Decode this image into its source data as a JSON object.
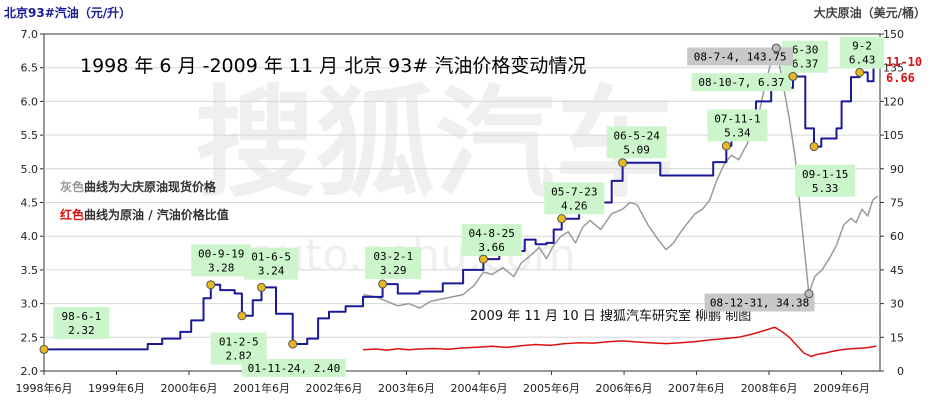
{
  "chart_data": {
    "type": "line",
    "title": "1998 年 6 月 -2009 年 11 月 北京 93# 汽油价格变动情况",
    "left_axis_label": "北京93#汽油（元/升）",
    "right_axis_label": "大庆原油（美元/桶）",
    "subtitle": "2009 年 11 月 10 日 搜狐汽车研究室 柳鹏 制图",
    "legend": {
      "gray_prefix": "灰色",
      "gray_text": "曲线为大庆原油现货价格",
      "red_prefix": "红色",
      "red_text": "曲线为原油 / 汽油价格比值"
    },
    "watermark": "搜狐汽车",
    "watermark_sub": "auto.sohu.com",
    "x_ticks": [
      "1998年6月",
      "1999年6月",
      "2000年6月",
      "2001年6月",
      "2002年6月",
      "2003年6月",
      "2004年6月",
      "2005年6月",
      "2006年6月",
      "2007年6月",
      "2008年6月",
      "2009年6月"
    ],
    "y_left": {
      "min": 2.0,
      "max": 7.0,
      "ticks": [
        "2.0",
        "2.5",
        "3.0",
        "3.5",
        "4.0",
        "4.5",
        "5.0",
        "5.5",
        "6.0",
        "6.5",
        "7.0"
      ]
    },
    "y_right": {
      "min": 0,
      "max": 150,
      "ticks": [
        "0",
        "15",
        "30",
        "45",
        "60",
        "75",
        "90",
        "105",
        "120",
        "135",
        "150"
      ]
    },
    "x_range": [
      1998.42,
      2009.95
    ],
    "series": [
      {
        "key": "gasoline",
        "axis": "left",
        "step": true,
        "color": "#1a1a99",
        "points": [
          [
            1998.42,
            2.32
          ],
          [
            1999.85,
            2.4
          ],
          [
            2000.05,
            2.48
          ],
          [
            2000.3,
            2.58
          ],
          [
            2000.45,
            2.75
          ],
          [
            2000.62,
            3.08
          ],
          [
            2000.72,
            3.28
          ],
          [
            2000.85,
            3.2
          ],
          [
            2001.05,
            3.15
          ],
          [
            2001.15,
            2.82
          ],
          [
            2001.3,
            3.05
          ],
          [
            2001.42,
            3.24
          ],
          [
            2001.62,
            2.85
          ],
          [
            2001.85,
            2.4
          ],
          [
            2002.05,
            2.48
          ],
          [
            2002.2,
            2.78
          ],
          [
            2002.35,
            2.88
          ],
          [
            2002.58,
            2.96
          ],
          [
            2002.82,
            3.1
          ],
          [
            2003.09,
            3.29
          ],
          [
            2003.3,
            3.15
          ],
          [
            2003.6,
            3.18
          ],
          [
            2003.92,
            3.3
          ],
          [
            2004.2,
            3.5
          ],
          [
            2004.48,
            3.66
          ],
          [
            2004.7,
            3.78
          ],
          [
            2005.05,
            3.95
          ],
          [
            2005.2,
            3.88
          ],
          [
            2005.35,
            3.9
          ],
          [
            2005.45,
            4.1
          ],
          [
            2005.56,
            4.26
          ],
          [
            2005.8,
            4.5
          ],
          [
            2005.95,
            4.5
          ],
          [
            2006.25,
            4.82
          ],
          [
            2006.4,
            5.09
          ],
          [
            2006.7,
            5.09
          ],
          [
            2006.92,
            4.9
          ],
          [
            2007.65,
            5.1
          ],
          [
            2007.83,
            5.34
          ],
          [
            2007.9,
            5.55
          ],
          [
            2008.1,
            5.55
          ],
          [
            2008.24,
            6.0
          ],
          [
            2008.45,
            6.2
          ],
          [
            2008.75,
            6.37
          ],
          [
            2008.92,
            5.6
          ],
          [
            2009.04,
            5.33
          ],
          [
            2009.14,
            5.45
          ],
          [
            2009.35,
            5.6
          ],
          [
            2009.42,
            6.0
          ],
          [
            2009.55,
            6.36
          ],
          [
            2009.67,
            6.43
          ],
          [
            2009.78,
            6.3
          ],
          [
            2009.86,
            6.66
          ]
        ]
      },
      {
        "key": "crude",
        "axis": "right",
        "step": false,
        "color": "#9a9a9a",
        "points": [
          [
            2002.82,
            34
          ],
          [
            2003.0,
            33
          ],
          [
            2003.15,
            31
          ],
          [
            2003.3,
            29
          ],
          [
            2003.45,
            30
          ],
          [
            2003.6,
            28
          ],
          [
            2003.75,
            31
          ],
          [
            2003.9,
            32
          ],
          [
            2004.05,
            33
          ],
          [
            2004.2,
            34
          ],
          [
            2004.35,
            38
          ],
          [
            2004.48,
            44
          ],
          [
            2004.6,
            43
          ],
          [
            2004.75,
            46
          ],
          [
            2004.9,
            42
          ],
          [
            2005.0,
            48
          ],
          [
            2005.15,
            52
          ],
          [
            2005.25,
            55
          ],
          [
            2005.35,
            50
          ],
          [
            2005.45,
            56
          ],
          [
            2005.55,
            60
          ],
          [
            2005.65,
            62
          ],
          [
            2005.75,
            57
          ],
          [
            2005.85,
            64
          ],
          [
            2005.95,
            67
          ],
          [
            2006.1,
            63
          ],
          [
            2006.25,
            70
          ],
          [
            2006.4,
            72
          ],
          [
            2006.5,
            75
          ],
          [
            2006.6,
            74
          ],
          [
            2006.75,
            65
          ],
          [
            2006.9,
            58
          ],
          [
            2007.0,
            54
          ],
          [
            2007.1,
            57
          ],
          [
            2007.25,
            64
          ],
          [
            2007.4,
            70
          ],
          [
            2007.5,
            72
          ],
          [
            2007.6,
            76
          ],
          [
            2007.7,
            85
          ],
          [
            2007.8,
            92
          ],
          [
            2007.9,
            96
          ],
          [
            2008.0,
            94
          ],
          [
            2008.1,
            100
          ],
          [
            2008.25,
            110
          ],
          [
            2008.35,
            125
          ],
          [
            2008.45,
            138
          ],
          [
            2008.52,
            143.75
          ],
          [
            2008.6,
            130
          ],
          [
            2008.7,
            112
          ],
          [
            2008.78,
            95
          ],
          [
            2008.85,
            72
          ],
          [
            2008.92,
            50
          ],
          [
            2008.97,
            34.38
          ],
          [
            2009.05,
            42
          ],
          [
            2009.15,
            45
          ],
          [
            2009.25,
            50
          ],
          [
            2009.35,
            56
          ],
          [
            2009.45,
            65
          ],
          [
            2009.55,
            68
          ],
          [
            2009.62,
            66
          ],
          [
            2009.7,
            72
          ],
          [
            2009.78,
            69
          ],
          [
            2009.85,
            76
          ],
          [
            2009.92,
            78
          ]
        ]
      },
      {
        "key": "ratio",
        "axis": "right",
        "step": false,
        "color": "#dd1111",
        "points": [
          [
            2002.82,
            9.5
          ],
          [
            2003.0,
            9.8
          ],
          [
            2003.15,
            9.3
          ],
          [
            2003.3,
            9.9
          ],
          [
            2003.45,
            9.5
          ],
          [
            2003.6,
            9.8
          ],
          [
            2003.8,
            10.0
          ],
          [
            2004.0,
            9.7
          ],
          [
            2004.2,
            10.3
          ],
          [
            2004.4,
            10.6
          ],
          [
            2004.6,
            11.0
          ],
          [
            2004.8,
            10.5
          ],
          [
            2005.0,
            11.2
          ],
          [
            2005.2,
            11.8
          ],
          [
            2005.4,
            11.4
          ],
          [
            2005.6,
            12.2
          ],
          [
            2005.8,
            12.6
          ],
          [
            2006.0,
            12.4
          ],
          [
            2006.2,
            13.0
          ],
          [
            2006.4,
            13.4
          ],
          [
            2006.6,
            12.9
          ],
          [
            2006.8,
            12.5
          ],
          [
            2007.0,
            12.2
          ],
          [
            2007.2,
            12.6
          ],
          [
            2007.4,
            13.1
          ],
          [
            2007.6,
            13.8
          ],
          [
            2007.8,
            14.4
          ],
          [
            2008.0,
            15.0
          ],
          [
            2008.2,
            16.5
          ],
          [
            2008.35,
            18.0
          ],
          [
            2008.5,
            19.5
          ],
          [
            2008.6,
            17.5
          ],
          [
            2008.7,
            15.0
          ],
          [
            2008.8,
            11.5
          ],
          [
            2008.9,
            8.0
          ],
          [
            2009.0,
            6.5
          ],
          [
            2009.1,
            7.5
          ],
          [
            2009.2,
            8.0
          ],
          [
            2009.3,
            8.8
          ],
          [
            2009.45,
            9.6
          ],
          [
            2009.6,
            10.0
          ],
          [
            2009.75,
            10.3
          ],
          [
            2009.9,
            11.0
          ]
        ]
      }
    ],
    "callouts": [
      {
        "key": "c1",
        "text1": "98-6-1",
        "text2": "2.32",
        "x": 1998.42,
        "axis": "left",
        "y": 2.32,
        "lx": 1998.55,
        "ly": 2.95,
        "w": 56,
        "bg": "#ccf5cc"
      },
      {
        "key": "c2",
        "text1": "00-9-19",
        "text2": "3.28",
        "x": 2000.72,
        "axis": "left",
        "y": 3.28,
        "lx": 2000.45,
        "ly": 3.88,
        "w": 60,
        "bg": "#ccf5cc"
      },
      {
        "key": "c3",
        "text1": "01-6-5",
        "text2": "3.24",
        "x": 2001.42,
        "axis": "left",
        "y": 3.24,
        "lx": 2001.18,
        "ly": 3.83,
        "w": 54,
        "bg": "#ccf5cc"
      },
      {
        "key": "c4",
        "text1": "01-2-5",
        "text2": "2.82",
        "x": 2001.15,
        "axis": "left",
        "y": 2.82,
        "lx": 2000.72,
        "ly": 2.57,
        "w": 56,
        "bg": "#ccf5cc"
      },
      {
        "key": "c5",
        "text1": "01-11-24, 2.40",
        "text2": "",
        "x": 2001.85,
        "axis": "left",
        "y": 2.4,
        "lx": 2001.15,
        "ly": 2.18,
        "w": 104,
        "bg": "#ccf5cc"
      },
      {
        "key": "c6",
        "text1": "03-2-1",
        "text2": "3.29",
        "x": 2003.09,
        "axis": "left",
        "y": 3.29,
        "lx": 2002.85,
        "ly": 3.84,
        "w": 56,
        "bg": "#ccf5cc"
      },
      {
        "key": "c7",
        "text1": "04-8-25",
        "text2": "3.66",
        "x": 2004.48,
        "axis": "left",
        "y": 3.66,
        "lx": 2004.18,
        "ly": 4.18,
        "w": 60,
        "bg": "#ccf5cc"
      },
      {
        "key": "c8",
        "text1": "05-7-23",
        "text2": "4.26",
        "x": 2005.56,
        "axis": "left",
        "y": 4.26,
        "lx": 2005.32,
        "ly": 4.8,
        "w": 60,
        "bg": "#ccf5cc"
      },
      {
        "key": "c9",
        "text1": "06-5-24",
        "text2": "5.09",
        "x": 2006.4,
        "axis": "left",
        "y": 5.09,
        "lx": 2006.18,
        "ly": 5.63,
        "w": 60,
        "bg": "#ccf5cc"
      },
      {
        "key": "c10",
        "text1": "07-11-1",
        "text2": "5.34",
        "x": 2007.83,
        "axis": "left",
        "y": 5.34,
        "lx": 2007.57,
        "ly": 5.88,
        "w": 60,
        "bg": "#ccf5cc"
      },
      {
        "key": "c11",
        "text1": "08-10-7, 6.37",
        "text2": "",
        "x": 2008.75,
        "axis": "left",
        "y": 6.37,
        "lx": 2007.35,
        "ly": 6.42,
        "w": 100,
        "bg": "#ccf5cc"
      },
      {
        "key": "c12",
        "text1": "6-30",
        "text2": "6.37",
        "x": 2008.75,
        "axis": "left",
        "y": 6.37,
        "lx": 2008.6,
        "ly": 6.9,
        "w": 46,
        "bg": "#ccf5cc"
      },
      {
        "key": "c13",
        "text1": "09-1-15",
        "text2": "5.33",
        "x": 2009.04,
        "axis": "left",
        "y": 5.33,
        "lx": 2008.78,
        "ly": 5.06,
        "w": 60,
        "bg": "#ccf5cc"
      },
      {
        "key": "c14",
        "text1": "9-2",
        "text2": "6.43",
        "x": 2009.67,
        "axis": "left",
        "y": 6.43,
        "lx": 2009.4,
        "ly": 6.96,
        "w": 44,
        "bg": "#ccf5cc"
      },
      {
        "key": "c15",
        "text1": "08-7-4, 143.75",
        "text2": "",
        "x": 2008.52,
        "axis": "right",
        "y": 143.75,
        "lx": 2007.29,
        "ly": 6.8,
        "w": 106,
        "bg": "#c8c8c8"
      },
      {
        "key": "c16",
        "text1": "08-12-31, 34.38",
        "text2": "",
        "x": 2008.97,
        "axis": "right",
        "y": 34.38,
        "lx": 2007.53,
        "ly": 3.15,
        "w": 110,
        "bg": "#c8c8c8"
      }
    ],
    "end_label": {
      "date": "11-10",
      "value": "6.66",
      "color": "#dd1111"
    }
  }
}
